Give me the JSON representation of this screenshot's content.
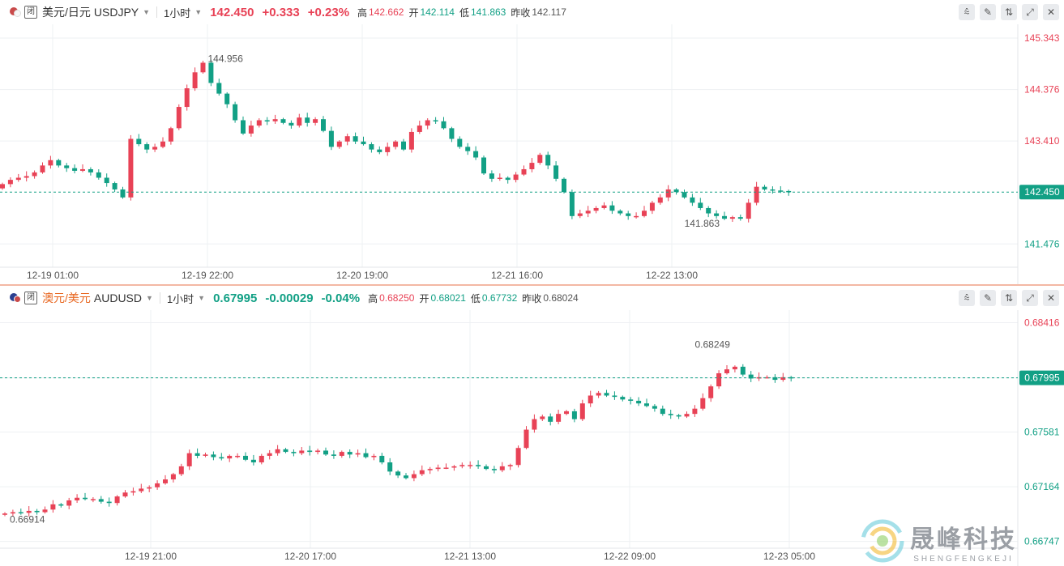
{
  "colors": {
    "up": "#e84256",
    "down": "#12a085",
    "grid": "#eef0f3",
    "axis": "#e3e5e8"
  },
  "toolbar_icons": [
    "indicator-icon",
    "draw-icon",
    "compare-icon",
    "expand-icon",
    "close-icon"
  ],
  "top": {
    "name": "美元/日元",
    "code": "USDJPY",
    "closed": "闭",
    "interval": "1小时",
    "price": "142.450",
    "change": "+0.333",
    "change_pct": "+0.23%",
    "high_label": "高",
    "high": "142.662",
    "open_label": "开",
    "open": "142.114",
    "low_label": "低",
    "low": "141.863",
    "prev_label": "昨收",
    "prev": "142.117"
  },
  "bottom": {
    "name": "澳元/美元",
    "code": "AUDUSD",
    "closed": "闭",
    "interval": "1小时",
    "price": "0.67995",
    "change": "-0.00029",
    "change_pct": "-0.04%",
    "high_label": "高",
    "high": "0.68250",
    "open_label": "开",
    "open": "0.68021",
    "low_label": "低",
    "low": "0.67732",
    "prev_label": "昨收",
    "prev": "0.68024"
  },
  "watermark": {
    "cn": "晟峰科技",
    "en": "SHENGFENGKEJI"
  },
  "chart_data": [
    {
      "type": "candlestick",
      "symbol": "USDJPY",
      "ylim": [
        141.1,
        145.45
      ],
      "y_ticks": [
        "145.343",
        "144.376",
        "143.410",
        "141.476"
      ],
      "x_ticks": [
        "12-19 01:00",
        "12-19 22:00",
        "12-20 19:00",
        "12-21 16:00",
        "12-22 13:00"
      ],
      "current": "142.450",
      "max_label": "144.956",
      "min_label": "141.863",
      "closes": [
        142.6,
        142.68,
        142.72,
        142.75,
        142.82,
        142.95,
        143.05,
        142.95,
        142.9,
        142.85,
        142.88,
        142.82,
        142.72,
        142.62,
        142.5,
        142.35,
        143.45,
        143.35,
        143.25,
        143.3,
        143.4,
        143.65,
        144.05,
        144.4,
        144.7,
        144.88,
        144.5,
        144.3,
        144.1,
        143.8,
        143.55,
        143.7,
        143.8,
        143.78,
        143.82,
        143.75,
        143.7,
        143.85,
        143.75,
        143.82,
        143.6,
        143.3,
        143.4,
        143.5,
        143.4,
        143.35,
        143.25,
        143.2,
        143.3,
        143.4,
        143.25,
        143.58,
        143.7,
        143.8,
        143.78,
        143.65,
        143.45,
        143.3,
        143.22,
        143.1,
        142.8,
        142.7,
        142.72,
        142.68,
        142.78,
        142.88,
        143.0,
        143.15,
        142.95,
        142.7,
        142.45,
        142.0,
        142.05,
        142.1,
        142.15,
        142.2,
        142.1,
        142.05,
        142.0,
        142.0,
        142.1,
        142.25,
        142.35,
        142.5,
        142.45,
        142.35,
        142.25,
        142.15,
        142.05,
        142.0,
        141.95,
        141.98,
        141.95,
        142.25,
        142.55,
        142.5,
        142.48,
        142.47,
        142.45
      ]
    },
    {
      "type": "candlestick",
      "symbol": "AUDUSD",
      "ylim": [
        0.6672,
        0.6845
      ],
      "y_ticks": [
        "0.68416",
        "0.67995",
        "0.67581",
        "0.67164",
        "0.66747"
      ],
      "x_ticks": [
        "12-19 21:00",
        "12-20 17:00",
        "12-21 13:00",
        "12-22 09:00",
        "12-23 05:00"
      ],
      "current": "0.67995",
      "max_label": "0.68249",
      "min_label": "0.66914",
      "closes": [
        0.6696,
        0.6697,
        0.66965,
        0.6698,
        0.6697,
        0.6699,
        0.6703,
        0.6702,
        0.6706,
        0.6708,
        0.6707,
        0.6707,
        0.6705,
        0.6704,
        0.6709,
        0.6712,
        0.6713,
        0.6715,
        0.6716,
        0.6719,
        0.6722,
        0.6726,
        0.6732,
        0.6742,
        0.674,
        0.6741,
        0.6739,
        0.6738,
        0.674,
        0.674,
        0.6737,
        0.6735,
        0.674,
        0.6742,
        0.6745,
        0.6743,
        0.6742,
        0.6744,
        0.6743,
        0.6744,
        0.6741,
        0.674,
        0.6743,
        0.6741,
        0.6742,
        0.6739,
        0.674,
        0.6735,
        0.6728,
        0.6725,
        0.6723,
        0.6726,
        0.6729,
        0.673,
        0.6731,
        0.6731,
        0.6732,
        0.6733,
        0.6733,
        0.6732,
        0.673,
        0.6729,
        0.6732,
        0.6733,
        0.6746,
        0.676,
        0.6768,
        0.677,
        0.6766,
        0.6772,
        0.6774,
        0.6768,
        0.678,
        0.6786,
        0.6788,
        0.6786,
        0.6785,
        0.6783,
        0.6782,
        0.678,
        0.6778,
        0.6776,
        0.6772,
        0.6771,
        0.677,
        0.6772,
        0.6776,
        0.6784,
        0.6793,
        0.6803,
        0.6806,
        0.6808,
        0.6802,
        0.6799,
        0.68,
        0.68,
        0.6798,
        0.68,
        0.67995
      ]
    }
  ]
}
